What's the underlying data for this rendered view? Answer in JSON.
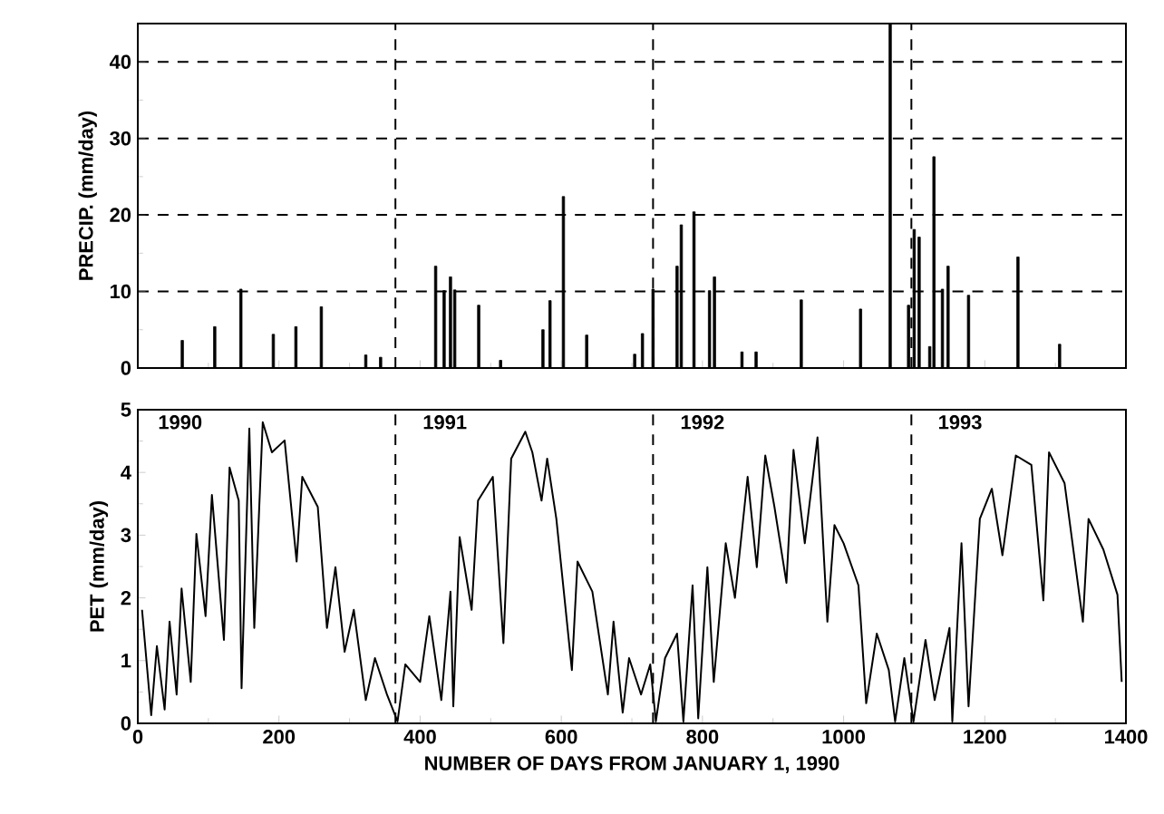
{
  "chart_data": [
    {
      "type": "bar",
      "ylabel": "PRECIP. (mm/day)",
      "xlim": [
        0,
        1400
      ],
      "xticks": [
        0,
        200,
        400,
        600,
        800,
        1000,
        1200,
        1400
      ],
      "ylim": [
        0,
        45
      ],
      "yticks": [
        0,
        10,
        20,
        30,
        40
      ],
      "grid": "y",
      "tick_labels": "y",
      "x": [
        63,
        109,
        146,
        192,
        224,
        260,
        323,
        344,
        422,
        434,
        443,
        449,
        483,
        514,
        574,
        584,
        603,
        636,
        704,
        715,
        730,
        764,
        770,
        788,
        810,
        817,
        856,
        876,
        940,
        1024,
        1066,
        1092,
        1100,
        1107,
        1122,
        1128,
        1140,
        1148,
        1177,
        1247,
        1306
      ],
      "series": [
        {
          "color": "#000000",
          "values": [
            3.6,
            5.4,
            10.3,
            4.4,
            5.4,
            8.0,
            1.7,
            1.4,
            13.3,
            10.1,
            11.9,
            10.2,
            8.2,
            1.0,
            5.0,
            8.8,
            22.4,
            4.3,
            1.8,
            4.5,
            10.3,
            13.3,
            18.7,
            20.4,
            10.1,
            11.9,
            2.1,
            2.1,
            8.9,
            7.7,
            45,
            8.2,
            18.1,
            17.1,
            2.8,
            27.6,
            10.3,
            13.3,
            9.5,
            14.5,
            3.1
          ]
        }
      ],
      "ref_lines": [
        {
          "axis": "x",
          "value": 365,
          "line_style": "dashed"
        },
        {
          "axis": "x",
          "value": 730,
          "line_style": "dashed"
        },
        {
          "axis": "x",
          "value": 1096,
          "line_style": "dashed"
        }
      ]
    },
    {
      "type": "line",
      "xlabel": "NUMBER OF DAYS FROM JANUARY 1, 1990",
      "ylabel": "PET (mm/day)",
      "xlim": [
        0,
        1400
      ],
      "xticks": [
        0,
        200,
        400,
        600,
        800,
        1000,
        1200,
        1400
      ],
      "ylim": [
        0,
        5
      ],
      "yticks": [
        0,
        1,
        2,
        3,
        4,
        5
      ],
      "grid": false,
      "marker": "none",
      "line_style": "solid",
      "x": [
        6,
        19,
        27,
        38,
        45,
        55,
        62,
        75,
        83,
        96,
        105,
        122,
        130,
        143,
        147,
        158,
        165,
        177,
        190,
        208,
        225,
        233,
        255,
        268,
        280,
        293,
        306,
        323,
        336,
        353,
        368,
        379,
        400,
        413,
        430,
        443,
        447,
        456,
        473,
        482,
        503,
        518,
        529,
        549,
        559,
        572,
        580,
        593,
        615,
        623,
        644,
        666,
        674,
        687,
        696,
        713,
        726,
        734,
        747,
        764,
        773,
        786,
        794,
        807,
        816,
        833,
        846,
        864,
        877,
        889,
        902,
        919,
        929,
        945,
        963,
        977,
        987,
        1000,
        1021,
        1032,
        1047,
        1064,
        1073,
        1086,
        1099,
        1116,
        1129,
        1150,
        1154,
        1167,
        1177,
        1193,
        1210,
        1225,
        1244,
        1266,
        1283,
        1291,
        1313,
        1339,
        1347,
        1368,
        1388,
        1394
      ],
      "series": [
        {
          "color": "#000000",
          "values": [
            1.81,
            0.13,
            1.23,
            0.22,
            1.62,
            0.46,
            2.15,
            0.66,
            3.02,
            1.71,
            3.64,
            1.33,
            4.08,
            3.55,
            0.56,
            4.7,
            1.52,
            4.8,
            4.32,
            4.51,
            2.58,
            3.93,
            3.45,
            1.52,
            2.49,
            1.14,
            1.81,
            0.37,
            1.04,
            0.46,
            0.03,
            0.94,
            0.66,
            1.71,
            0.37,
            2.1,
            0.27,
            2.97,
            1.81,
            3.55,
            3.93,
            1.28,
            4.22,
            4.65,
            4.32,
            3.55,
            4.22,
            3.26,
            0.85,
            2.58,
            2.1,
            0.46,
            1.62,
            0.17,
            1.04,
            0.46,
            0.94,
            0.03,
            1.04,
            1.43,
            0.03,
            2.2,
            0.08,
            2.49,
            0.66,
            2.87,
            2.0,
            3.93,
            2.49,
            4.27,
            3.45,
            2.24,
            4.36,
            2.87,
            4.56,
            1.62,
            3.16,
            2.87,
            2.2,
            0.32,
            1.43,
            0.85,
            0.03,
            1.04,
            0.03,
            1.33,
            0.37,
            1.52,
            0.03,
            2.87,
            0.27,
            3.26,
            3.74,
            2.68,
            4.27,
            4.12,
            1.96,
            4.32,
            3.83,
            1.62,
            3.26,
            2.77,
            2.05,
            0.66
          ]
        }
      ],
      "ref_lines": [
        {
          "axis": "x",
          "value": 365,
          "line_style": "dashed"
        },
        {
          "axis": "x",
          "value": 730,
          "line_style": "dashed"
        },
        {
          "axis": "x",
          "value": 1096,
          "line_style": "dashed"
        }
      ],
      "annotations": [
        {
          "text": "1990",
          "x": 60,
          "y": 4.8
        },
        {
          "text": "1991",
          "x": 435,
          "y": 4.8
        },
        {
          "text": "1992",
          "x": 800,
          "y": 4.8
        },
        {
          "text": "1993",
          "x": 1165,
          "y": 4.8
        }
      ]
    }
  ]
}
